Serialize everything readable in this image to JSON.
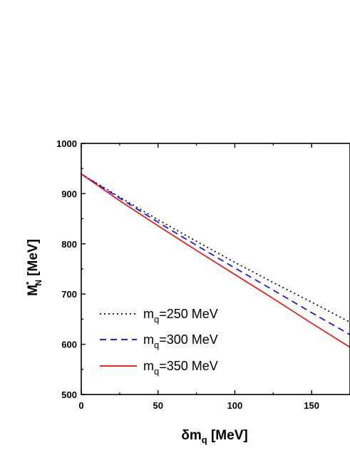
{
  "chart_data": {
    "type": "line",
    "xlabel": {
      "main": "δm",
      "sub": "q",
      "unit": " [MeV]"
    },
    "ylabel": {
      "main": "M",
      "sup": "*",
      "sub": "N",
      "unit": " [MeV]"
    },
    "xlim": [
      0,
      175
    ],
    "ylim": [
      500,
      1000
    ],
    "x_ticks": [
      0,
      50,
      100,
      150
    ],
    "x_tick_labels": [
      "0",
      "50",
      "100",
      "150"
    ],
    "y_ticks": [
      500,
      600,
      700,
      800,
      900,
      1000
    ],
    "y_tick_labels": [
      "500",
      "600",
      "700",
      "800",
      "900",
      "1000"
    ],
    "grid": false,
    "legend_position": "bottom-left",
    "series": [
      {
        "name": {
          "main": "m",
          "sub": "q",
          "rest": "=250 MeV"
        },
        "color": "#000000",
        "dash": "dotted",
        "x": [
          0,
          25,
          50,
          75,
          100,
          125,
          150,
          175
        ],
        "y": [
          939,
          893,
          848,
          805,
          763,
          723,
          684,
          644
        ]
      },
      {
        "name": {
          "main": "m",
          "sub": "q",
          "rest": "=300 MeV"
        },
        "color": "#0000ff",
        "dash": "dashed",
        "x": [
          0,
          25,
          50,
          75,
          100,
          125,
          150,
          175
        ],
        "y": [
          939,
          891,
          843,
          797,
          752,
          708,
          663,
          619
        ]
      },
      {
        "name": {
          "main": "m",
          "sub": "q",
          "rest": "=350 MeV"
        },
        "color": "#ff0000",
        "dash": "solid",
        "x": [
          0,
          25,
          50,
          75,
          100,
          125,
          150,
          175
        ],
        "y": [
          939,
          886,
          836,
          787,
          739,
          691,
          642,
          594
        ]
      }
    ]
  }
}
